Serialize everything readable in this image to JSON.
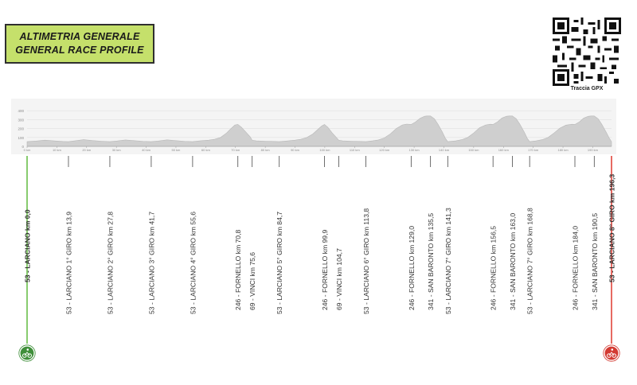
{
  "title": {
    "line1": "ALTIMETRIA GENERALE",
    "line2": "GENERAL RACE PROFILE"
  },
  "qr": {
    "label": "Traccia GPX",
    "icon": "qr-code-icon"
  },
  "colors": {
    "title_bg": "#c5e06b",
    "profile_fill": "#cfcfcf",
    "start_line": "#6abf4b",
    "finish_line": "#e0443a",
    "text": "#333333"
  },
  "icons": {
    "start": "cyclist-start-icon",
    "finish": "cyclist-finish-icon"
  },
  "chart_data": {
    "type": "area",
    "xlabel": "",
    "ylabel": "",
    "xlim": [
      0,
      196.3
    ],
    "ylim": [
      0,
      500
    ],
    "y_ticks": [
      "400",
      "300",
      "200",
      "100",
      "0"
    ],
    "x_ticks": [
      {
        "km": 0,
        "label": "0 km"
      },
      {
        "km": 10,
        "label": "10 km"
      },
      {
        "km": 20,
        "label": "20 km"
      },
      {
        "km": 30,
        "label": "30 km"
      },
      {
        "km": 40,
        "label": "40 km"
      },
      {
        "km": 50,
        "label": "50 km"
      },
      {
        "km": 60,
        "label": "60 km"
      },
      {
        "km": 70,
        "label": "70 km"
      },
      {
        "km": 80,
        "label": "80 km"
      },
      {
        "km": 90,
        "label": "90 km"
      },
      {
        "km": 100,
        "label": "100 km"
      },
      {
        "km": 110,
        "label": "110 km"
      },
      {
        "km": 120,
        "label": "120 km"
      },
      {
        "km": 130,
        "label": "130 km"
      },
      {
        "km": 140,
        "label": "140 km"
      },
      {
        "km": 150,
        "label": "150 km"
      },
      {
        "km": 160,
        "label": "160 km"
      },
      {
        "km": 170,
        "label": "170 km"
      },
      {
        "km": 180,
        "label": "180 km"
      },
      {
        "km": 190,
        "label": "190 km"
      }
    ],
    "profile": [
      [
        0,
        53
      ],
      [
        3,
        60
      ],
      [
        6,
        70
      ],
      [
        9,
        62
      ],
      [
        12,
        55
      ],
      [
        13.9,
        53
      ],
      [
        16,
        62
      ],
      [
        19,
        75
      ],
      [
        22,
        65
      ],
      [
        25,
        58
      ],
      [
        27.8,
        53
      ],
      [
        30,
        60
      ],
      [
        33,
        72
      ],
      [
        36,
        64
      ],
      [
        39,
        57
      ],
      [
        41.7,
        53
      ],
      [
        44,
        60
      ],
      [
        47,
        73
      ],
      [
        50,
        64
      ],
      [
        53,
        57
      ],
      [
        55.6,
        53
      ],
      [
        58,
        62
      ],
      [
        61,
        70
      ],
      [
        63,
        80
      ],
      [
        65,
        100
      ],
      [
        67,
        150
      ],
      [
        68.5,
        200
      ],
      [
        69.8,
        240
      ],
      [
        70.8,
        246
      ],
      [
        72,
        215
      ],
      [
        73.5,
        160
      ],
      [
        75,
        105
      ],
      [
        75.6,
        69
      ],
      [
        77,
        62
      ],
      [
        80,
        58
      ],
      [
        83,
        55
      ],
      [
        84.7,
        53
      ],
      [
        87,
        60
      ],
      [
        90,
        70
      ],
      [
        92,
        80
      ],
      [
        94,
        100
      ],
      [
        96,
        140
      ],
      [
        97.5,
        185
      ],
      [
        99,
        230
      ],
      [
        99.9,
        246
      ],
      [
        101,
        215
      ],
      [
        102.5,
        150
      ],
      [
        104,
        95
      ],
      [
        104.7,
        69
      ],
      [
        106,
        62
      ],
      [
        109,
        58
      ],
      [
        112,
        55
      ],
      [
        113.8,
        53
      ],
      [
        116,
        62
      ],
      [
        118,
        72
      ],
      [
        120,
        95
      ],
      [
        122,
        140
      ],
      [
        124,
        200
      ],
      [
        126,
        240
      ],
      [
        127.5,
        250
      ],
      [
        129,
        246
      ],
      [
        130.5,
        275
      ],
      [
        132,
        315
      ],
      [
        133.5,
        338
      ],
      [
        134.3,
        341
      ],
      [
        135.5,
        341
      ],
      [
        136.8,
        310
      ],
      [
        138,
        250
      ],
      [
        139.5,
        160
      ],
      [
        140.5,
        90
      ],
      [
        141.3,
        53
      ],
      [
        144,
        62
      ],
      [
        146,
        75
      ],
      [
        148,
        100
      ],
      [
        150,
        150
      ],
      [
        152,
        210
      ],
      [
        154,
        240
      ],
      [
        155.5,
        248
      ],
      [
        156.5,
        246
      ],
      [
        158,
        275
      ],
      [
        159.5,
        318
      ],
      [
        161,
        338
      ],
      [
        162,
        341
      ],
      [
        163,
        341
      ],
      [
        164.3,
        310
      ],
      [
        165.5,
        250
      ],
      [
        167,
        160
      ],
      [
        168,
        90
      ],
      [
        168.8,
        53
      ],
      [
        171,
        62
      ],
      [
        173,
        75
      ],
      [
        175,
        100
      ],
      [
        177,
        150
      ],
      [
        179,
        205
      ],
      [
        181,
        238
      ],
      [
        183,
        248
      ],
      [
        184,
        246
      ],
      [
        185.5,
        275
      ],
      [
        187,
        318
      ],
      [
        188.5,
        338
      ],
      [
        189.5,
        341
      ],
      [
        190.5,
        341
      ],
      [
        191.8,
        310
      ],
      [
        193,
        250
      ],
      [
        194.5,
        160
      ],
      [
        195.5,
        95
      ],
      [
        196.3,
        53
      ]
    ],
    "waypoints": [
      {
        "km": 0,
        "label": "53 - LARCIANO km 0,0",
        "kind": "start",
        "bold": true
      },
      {
        "km": 13.9,
        "label": "53 - LARCIANO 1° GIRO km 13,9",
        "kind": "lap"
      },
      {
        "km": 27.8,
        "label": "53 - LARCIANO 2° GIRO km 27,8",
        "kind": "lap"
      },
      {
        "km": 41.7,
        "label": "53 - LARCIANO 3° GIRO km 41,7",
        "kind": "lap"
      },
      {
        "km": 55.6,
        "label": "53 - LARCIANO 4° GIRO km 55,6",
        "kind": "lap"
      },
      {
        "km": 70.8,
        "label": "246 - FORNELLO km 70,8",
        "kind": "point"
      },
      {
        "km": 75.6,
        "label": "69 - VINCI km 75,6",
        "kind": "point"
      },
      {
        "km": 84.7,
        "label": "53 - LARCIANO 5° GIRO km 84,7",
        "kind": "lap"
      },
      {
        "km": 99.9,
        "label": "246 - FORNELLO km 99,9",
        "kind": "point"
      },
      {
        "km": 104.7,
        "label": "69 - VINCI km 104,7",
        "kind": "point"
      },
      {
        "km": 113.8,
        "label": "53 - LARCIANO 6° GIRO km 113,8",
        "kind": "lap"
      },
      {
        "km": 129.0,
        "label": "246 - FORNELLO km 129,0",
        "kind": "point"
      },
      {
        "km": 135.5,
        "label": "341 - SAN BARONTO km 135,5",
        "kind": "point"
      },
      {
        "km": 141.3,
        "label": "53 - LARCIANO 7° GIRO km 141,3",
        "kind": "lap"
      },
      {
        "km": 156.5,
        "label": "246 - FORNELLO km 156,5",
        "kind": "point"
      },
      {
        "km": 163.0,
        "label": "341 - SAN BARONTO km 163,0",
        "kind": "point"
      },
      {
        "km": 168.8,
        "label": "53 - LARCIANO 7° GIRO km 168,8",
        "kind": "lap"
      },
      {
        "km": 184.0,
        "label": "246 - FORNELLO km 184,0",
        "kind": "point"
      },
      {
        "km": 190.5,
        "label": "341 - SAN BARONTO km 190,5",
        "kind": "point"
      },
      {
        "km": 196.3,
        "label": "53 - LARCIANO 8° GIRO km 196,3",
        "kind": "finish",
        "bold": true
      }
    ]
  }
}
